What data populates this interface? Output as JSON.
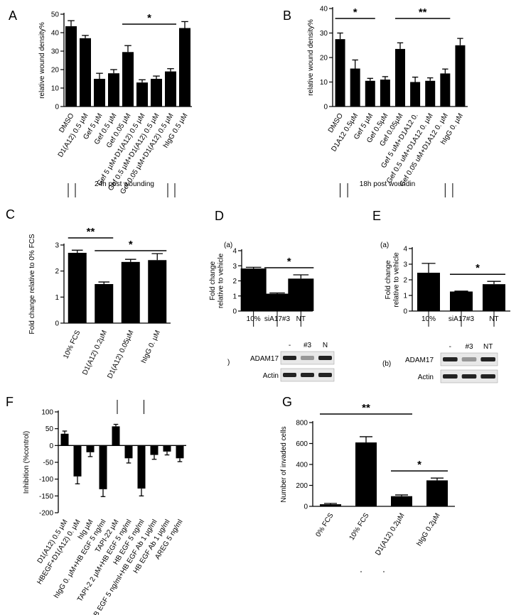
{
  "panels": [
    {
      "key": "A",
      "label": "A"
    },
    {
      "key": "B",
      "label": "B"
    },
    {
      "key": "C",
      "label": "C"
    },
    {
      "key": "D",
      "label": "D",
      "sub": "(a)",
      "blot_prefix": ")"
    },
    {
      "key": "E",
      "label": "E",
      "sub": "(a)",
      "blot_prefix": "(b)"
    },
    {
      "key": "F",
      "label": "F"
    },
    {
      "key": "G",
      "label": "G"
    }
  ],
  "chart_data": [
    {
      "id": "A",
      "type": "bar",
      "ylabel": "relative wound density%",
      "ylim": [
        0,
        50
      ],
      "yticks": [
        0,
        10,
        20,
        30,
        40,
        50
      ],
      "categories": [
        "DMSO",
        "D1(A12) 0.5 µM",
        "Gef 5 µM",
        "Gef 0.5 µM",
        "Gef 0.05 µM",
        "Gef 5 µM+D1(A12) 0.5 µM",
        "Gef 0.5 µM+D1(A12) 0.5 µM",
        "Gef 0.05 µM+D1(A12) 0.5 µM",
        "hIgG 0.5 µM"
      ],
      "values": [
        43.5,
        37,
        15,
        18,
        29.5,
        13,
        15,
        19,
        42.5
      ],
      "errors": [
        3,
        1.5,
        3,
        2,
        3.5,
        1.5,
        1.5,
        1.5,
        3.5
      ],
      "significance": [
        {
          "label": "*",
          "from": 4,
          "to": 7
        }
      ],
      "caption": "24h post wounding"
    },
    {
      "id": "B",
      "type": "bar",
      "ylabel": "relative wound density%",
      "ylim": [
        0,
        40
      ],
      "yticks": [
        0,
        10,
        20,
        30,
        40
      ],
      "categories": [
        "DMSO",
        "D1A12 0.5µM",
        "Gef 5 µM",
        "Gef 0.5µM",
        "Gef 0.05µM",
        "Gef 5 uM+D1A12 0.",
        "Gef 0.5 uM+D1A12 0. µM",
        "Gef 0.05 uM+D1A12 0. µM",
        "hIgG 0. µM"
      ],
      "values": [
        27.5,
        15.5,
        10.5,
        11,
        23.5,
        10,
        10.5,
        13.5,
        25
      ],
      "errors": [
        2.5,
        3.5,
        1,
        1.2,
        2.5,
        2,
        1.2,
        1.8,
        2.8
      ],
      "significance": [
        {
          "label": "*",
          "from": 0,
          "to": 2
        },
        {
          "label": "**",
          "from": 4,
          "to": 7
        }
      ],
      "caption": "18h post woundin"
    },
    {
      "id": "C",
      "type": "bar",
      "ylabel": "Fold change relative to 0% FCS",
      "ylim": [
        0,
        3
      ],
      "yticks": [
        0,
        1,
        2,
        3
      ],
      "categories": [
        "10% FCS",
        "D1(A12) 0.2µM",
        "D1(A12) 0.05µM",
        "hIgG 0. µM"
      ],
      "values": [
        2.7,
        1.5,
        2.35,
        2.42
      ],
      "errors": [
        0.1,
        0.08,
        0.1,
        0.25
      ],
      "significance": [
        {
          "label": "**",
          "from": 0,
          "to": 1
        },
        {
          "label": "*",
          "from": 1,
          "to": 3
        }
      ]
    },
    {
      "id": "D",
      "type": "bar",
      "ylabel": "Fold change relative to vehicle",
      "ylim": [
        0,
        4
      ],
      "yticks": [
        0,
        1,
        2,
        3,
        4
      ],
      "categories": [
        "10%",
        "siA17#3",
        "NT"
      ],
      "values": [
        2.82,
        1.15,
        2.15
      ],
      "errors": [
        0.08,
        0.05,
        0.25
      ],
      "significance": [
        {
          "label": "*",
          "from": 1,
          "to": 2
        }
      ],
      "blot": {
        "lanes": [
          "-",
          "#3",
          "N"
        ],
        "rows": [
          "ADAM17",
          "Actin"
        ]
      }
    },
    {
      "id": "E",
      "type": "bar",
      "ylabel": "Fold change relative to vehicle",
      "ylim": [
        0,
        4
      ],
      "yticks": [
        0,
        1,
        2,
        3,
        4
      ],
      "categories": [
        "10%",
        "siA17#3",
        "NT"
      ],
      "values": [
        2.45,
        1.25,
        1.72
      ],
      "errors": [
        0.6,
        0.03,
        0.18
      ],
      "significance": [
        {
          "label": "*",
          "from": 1,
          "to": 2
        }
      ],
      "blot": {
        "lanes": [
          "-",
          "#3",
          "NT"
        ],
        "rows": [
          "ADAM17",
          "Actin"
        ]
      }
    },
    {
      "id": "F",
      "type": "bar",
      "ylabel": "Inhibition (%control)",
      "ylim": [
        -200,
        100
      ],
      "yticks": [
        100,
        50,
        0,
        -50,
        -100,
        -150,
        -200
      ],
      "categories": [
        "D1(A12) 0.5 µM",
        "HBEGF+D1(A12) 0. µM",
        "hIg µM",
        "hIgG 0. µM+HB EGF 5 ng/ml",
        "TAPI-22 µM",
        "TAPI-2 2 µM+HB EGF 5 ng/ml",
        "HB EGF 5 ng/ml",
        "HB EGF 5 ng/ml+HB EGF Ab 1 µg/ml",
        "HB EGF Ab 1 µg/ml",
        "AREG 5 ng/ml"
      ],
      "values": [
        35,
        -92,
        -20,
        -130,
        57,
        -38,
        -128,
        -28,
        -18,
        -38
      ],
      "errors": [
        8,
        22,
        13,
        22,
        6,
        14,
        22,
        13,
        10,
        10
      ]
    },
    {
      "id": "G",
      "type": "bar",
      "ylabel": "Number of invaded cells",
      "ylim": [
        0,
        800
      ],
      "yticks": [
        0,
        200,
        400,
        600,
        800
      ],
      "categories": [
        "0% FCS",
        "10% FCS",
        "D1(A12) 0.2µM",
        "hIgG 0.2µM"
      ],
      "values": [
        20,
        610,
        97,
        248
      ],
      "errors": [
        8,
        55,
        12,
        22
      ],
      "significance": [
        {
          "label": "**",
          "from": 0,
          "to": 2
        },
        {
          "label": "*",
          "from": 2,
          "to": 3
        }
      ]
    }
  ]
}
